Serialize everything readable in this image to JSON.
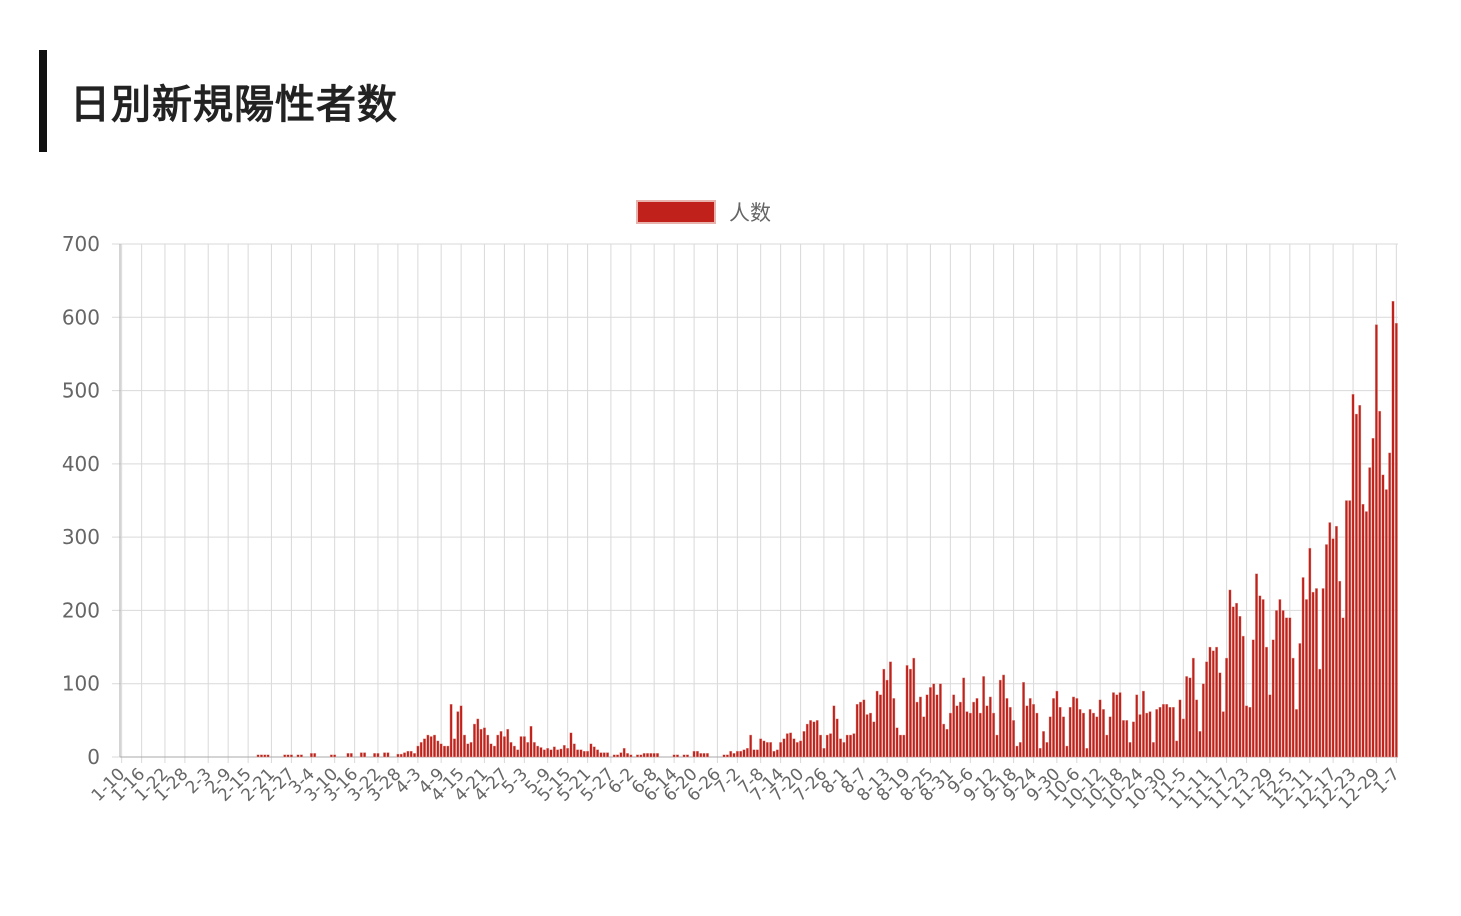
{
  "page": {
    "title": "日別新規陽性者数"
  },
  "colors": {
    "accent_bar": "#111111",
    "bar_fill": "#c0211a",
    "bar_border": "#e0a49e",
    "grid": "#d9d9d9",
    "axis_text": "#666666"
  },
  "chart_data": {
    "type": "bar",
    "title": "",
    "xlabel": "",
    "ylabel": "",
    "ylim": [
      0,
      700
    ],
    "y_ticks": [
      0,
      100,
      200,
      300,
      400,
      500,
      600,
      700
    ],
    "grid": true,
    "legend_position": "top-center",
    "x_tick_labels": [
      "1-10",
      "1-16",
      "1-22",
      "1-28",
      "2-3",
      "2-9",
      "2-15",
      "2-21",
      "2-27",
      "3-4",
      "3-10",
      "3-16",
      "3-22",
      "3-28",
      "4-3",
      "4-9",
      "4-15",
      "4-21",
      "4-27",
      "5-3",
      "5-9",
      "5-15",
      "5-21",
      "5-27",
      "6-2",
      "6-8",
      "6-14",
      "6-20",
      "6-26",
      "7-2",
      "7-8",
      "7-14",
      "7-20",
      "7-26",
      "8-1",
      "8-7",
      "8-13",
      "8-19",
      "8-25",
      "8-31",
      "9-6",
      "9-12",
      "9-18",
      "9-24",
      "9-30",
      "10-6",
      "10-12",
      "10-18",
      "10-24",
      "10-30",
      "11-5",
      "11-11",
      "11-17",
      "11-23",
      "11-29",
      "12-5",
      "12-11",
      "12-17",
      "12-23",
      "12-29",
      "1-7"
    ],
    "x_range": [
      "1-10",
      "1-7"
    ],
    "series": [
      {
        "name": "人数",
        "color": "#c0211a",
        "values": [
          0,
          0,
          0,
          0,
          0,
          0,
          0,
          0,
          0,
          0,
          0,
          0,
          0,
          0,
          0,
          0,
          0,
          0,
          0,
          0,
          0,
          0,
          0,
          0,
          0,
          0,
          0,
          0,
          0,
          0,
          0,
          0,
          0,
          0,
          0,
          0,
          0,
          0,
          0,
          0,
          0,
          3,
          3,
          3,
          3,
          0,
          0,
          0,
          0,
          3,
          3,
          3,
          0,
          3,
          3,
          0,
          0,
          5,
          5,
          0,
          0,
          0,
          0,
          3,
          3,
          0,
          0,
          0,
          5,
          5,
          0,
          0,
          6,
          6,
          0,
          0,
          5,
          5,
          0,
          6,
          6,
          0,
          0,
          4,
          4,
          6,
          8,
          8,
          5,
          15,
          20,
          25,
          30,
          28,
          30,
          22,
          18,
          15,
          15,
          72,
          25,
          62,
          70,
          30,
          18,
          20,
          45,
          52,
          38,
          40,
          30,
          18,
          15,
          30,
          35,
          28,
          38,
          20,
          15,
          10,
          28,
          28,
          20,
          42,
          20,
          15,
          13,
          10,
          12,
          10,
          14,
          10,
          11,
          16,
          12,
          33,
          18,
          10,
          10,
          8,
          8,
          18,
          14,
          10,
          6,
          6,
          6,
          0,
          3,
          3,
          6,
          12,
          5,
          3,
          0,
          3,
          3,
          5,
          5,
          5,
          5,
          5,
          0,
          0,
          0,
          0,
          3,
          3,
          0,
          3,
          3,
          0,
          8,
          8,
          5,
          5,
          5,
          0,
          0,
          0,
          0,
          3,
          3,
          8,
          5,
          8,
          8,
          10,
          12,
          30,
          10,
          10,
          25,
          22,
          20,
          20,
          8,
          10,
          20,
          25,
          32,
          33,
          25,
          20,
          22,
          35,
          45,
          50,
          48,
          50,
          30,
          12,
          30,
          32,
          70,
          52,
          25,
          20,
          30,
          30,
          32,
          72,
          75,
          78,
          58,
          60,
          48,
          90,
          85,
          120,
          105,
          130,
          80,
          40,
          30,
          30,
          125,
          120,
          135,
          75,
          82,
          55,
          85,
          95,
          100,
          85,
          100,
          45,
          38,
          60,
          85,
          70,
          75,
          108,
          62,
          60,
          75,
          80,
          60,
          110,
          70,
          82,
          60,
          30,
          105,
          112,
          80,
          68,
          50,
          15,
          20,
          102,
          70,
          80,
          72,
          60,
          12,
          35,
          20,
          55,
          80,
          90,
          68,
          55,
          15,
          68,
          82,
          80,
          65,
          60,
          12,
          65,
          60,
          55,
          78,
          65,
          30,
          55,
          88,
          85,
          88,
          50,
          50,
          20,
          48,
          85,
          58,
          90,
          60,
          62,
          20,
          65,
          68,
          72,
          72,
          68,
          68,
          22,
          78,
          52,
          110,
          108,
          135,
          78,
          35,
          100,
          130,
          150,
          145,
          150,
          115,
          62,
          135,
          228,
          205,
          210,
          192,
          165,
          70,
          68,
          160,
          250,
          220,
          215,
          150,
          85,
          160,
          200,
          215,
          200,
          190,
          190,
          135,
          65,
          155,
          245,
          215,
          285,
          225,
          230,
          120,
          230,
          290,
          320,
          298,
          315,
          240,
          190,
          350,
          350,
          495,
          468,
          480,
          345,
          335,
          395,
          435,
          590,
          472,
          385,
          365,
          415,
          622,
          592
        ],
        "notes": "values estimated from bar heights, one bar per day from 1-10 to 1-7"
      }
    ]
  }
}
